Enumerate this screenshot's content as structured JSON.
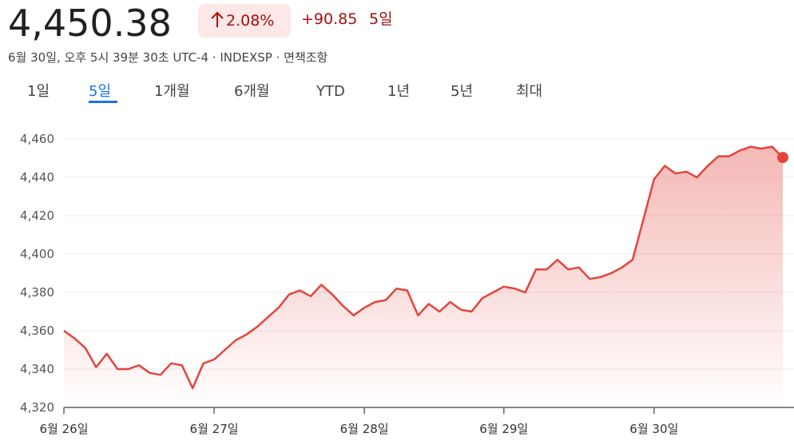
{
  "header": {
    "price": "4,450.38",
    "change_percent": "2.08%",
    "change_value": "+90.85",
    "change_period": "5일",
    "subtitle": "6월 30일, 오후 5시 39분 30초 UTC-4 · INDEXSP · 면책조항"
  },
  "tabs": [
    "1일",
    "5일",
    "1개월",
    "6개월",
    "YTD",
    "1년",
    "5년",
    "최대"
  ],
  "chart_data": {
    "type": "line",
    "categories": [
      "6월 26일",
      null,
      null,
      null,
      null,
      null,
      null,
      null,
      null,
      null,
      null,
      null,
      null,
      null,
      "6월 27일",
      null,
      null,
      null,
      null,
      null,
      null,
      null,
      null,
      null,
      null,
      null,
      null,
      null,
      "6월 28일",
      null,
      null,
      null,
      null,
      null,
      null,
      null,
      null,
      null,
      null,
      null,
      null,
      "6월 29일",
      null,
      null,
      null,
      null,
      null,
      null,
      null,
      null,
      null,
      null,
      null,
      null,
      null,
      "6월 30일",
      null,
      null,
      null,
      null,
      null,
      null,
      null,
      null,
      null,
      null,
      null,
      null
    ],
    "values": [
      4360,
      4356,
      4351,
      4341,
      4348,
      4340,
      4340,
      4342,
      4338,
      4337,
      4343,
      4342,
      4330,
      4343,
      4345,
      4350,
      4355,
      4358,
      4362,
      4367,
      4372,
      4379,
      4381,
      4378,
      4384,
      4379,
      4373,
      4368,
      4372,
      4375,
      4376,
      4382,
      4381,
      4368,
      4374,
      4370,
      4375,
      4371,
      4370,
      4377,
      4380,
      4383,
      4382,
      4380,
      4392,
      4392,
      4397,
      4392,
      4393,
      4387,
      4388,
      4390,
      4393,
      4397,
      4418,
      4439,
      4446,
      4442,
      4443,
      4440,
      4446,
      4451,
      4451,
      4454,
      4456,
      4455,
      4456,
      4450.38
    ],
    "color": "#e2453c",
    "ylim": [
      4320,
      4460
    ],
    "yticks": [
      {
        "value": 4320,
        "label": "4,320"
      },
      {
        "value": 4340,
        "label": "4,340"
      },
      {
        "value": 4360,
        "label": "4,360"
      },
      {
        "value": 4380,
        "label": "4,380"
      },
      {
        "value": 4400,
        "label": "4,400"
      },
      {
        "value": 4420,
        "label": "4,420"
      },
      {
        "value": 4440,
        "label": "4,440"
      },
      {
        "value": 4460,
        "label": "4,460"
      }
    ],
    "grid": true
  }
}
